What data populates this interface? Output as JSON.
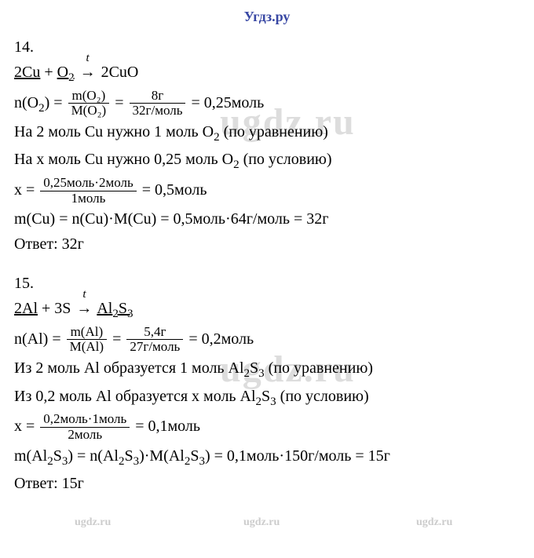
{
  "header": "Угдз.ру",
  "watermark_big": "ugdz.ru",
  "watermark_small": "ugdz.ru",
  "problem14": {
    "number": "14.",
    "eq_2cu": "2Cu",
    "eq_plus": " + ",
    "eq_o2": "O",
    "eq_o2_sub": "2",
    "arrow": "→",
    "arrow_t": "t",
    "eq_2cuo": " 2CuO",
    "n_o2_lhs": "n(O",
    "n_o2_sub": "2",
    "n_o2_close": ") = ",
    "frac1_num": "m(O₂)",
    "frac1_den": "M(O₂)",
    "eq_eq": " = ",
    "frac2_num": "8г",
    "frac2_den": "32г/моль",
    "n_o2_result": " = 0,25моль",
    "line3": "На 2 моль Cu нужно 1 моль O",
    "line3_sub": "2",
    "line3_tail": " (по уравнению)",
    "line4": "На x моль Cu нужно 0,25 моль O",
    "line4_sub": "2",
    "line4_tail": " (по условию)",
    "x_lhs": "x = ",
    "frac3_num": "0,25моль·2моль",
    "frac3_den": "1моль",
    "x_result": " = 0,5моль",
    "line6": "m(Cu) = n(Cu)·M(Cu) = 0,5моль·64г/моль = 32г",
    "answer": "Ответ: 32г"
  },
  "problem15": {
    "number": "15.",
    "eq_2al": "2Al",
    "eq_plus": " + 3S ",
    "arrow": "→",
    "arrow_t": "t",
    "eq_al2s3_pre": " ",
    "eq_al2s3": "Al",
    "eq_al2s3_sub1": "2",
    "eq_al2s3_s": "S",
    "eq_al2s3_sub2": "3",
    "n_al_lhs": "n(Al) = ",
    "frac1_num": "m(Al)",
    "frac1_den": "M(Al)",
    "eq_eq": " = ",
    "frac2_num": "5,4г",
    "frac2_den": "27г/моль",
    "n_al_result": " = 0,2моль",
    "line3a": "Из 2 моль Al образуется 1 моль Al",
    "line3_sub1": "2",
    "line3_s": "S",
    "line3_sub2": "3",
    "line3_tail": " (по уравнению)",
    "line4a": "Из 0,2 моль Al образуется x моль Al",
    "line4_sub1": "2",
    "line4_s": "S",
    "line4_sub2": "3",
    "line4_tail": " (по условию)",
    "x_lhs": "x = ",
    "frac3_num": "0,2моль·1моль",
    "frac3_den": "2моль",
    "x_result": " = 0,1моль",
    "line6a": "m(Al",
    "line6_sub1": "2",
    "line6_s1": "S",
    "line6_sub2": "3",
    "line6b": ") = n(Al",
    "line6_sub3": "2",
    "line6_s2": "S",
    "line6_sub4": "3",
    "line6c": ")·M(Al",
    "line6_sub5": "2",
    "line6_s3": "S",
    "line6_sub6": "3",
    "line6d": ") = 0,1моль·150г/моль = 15г",
    "answer": "Ответ: 15г"
  }
}
